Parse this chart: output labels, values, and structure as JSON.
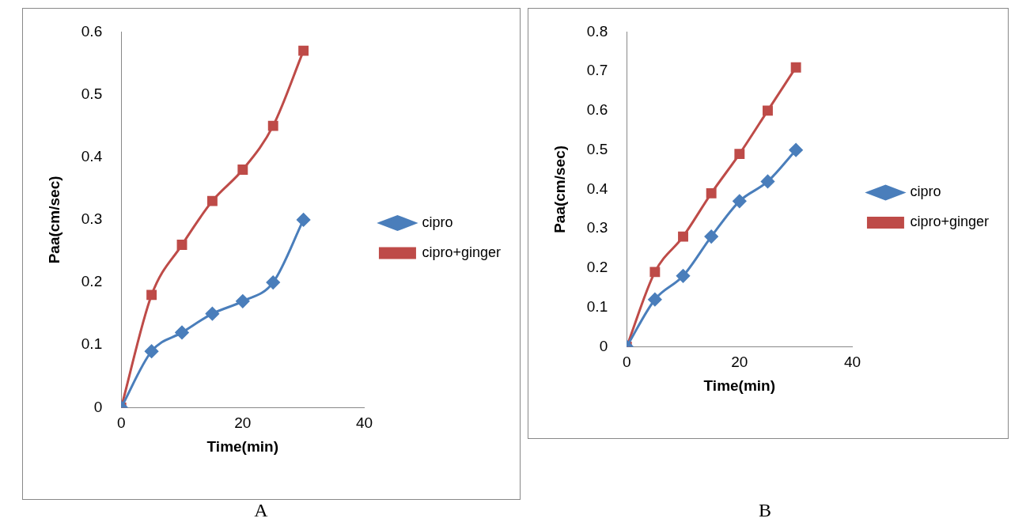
{
  "chart_data": [
    {
      "type": "line",
      "xlabel": "Time(min)",
      "ylabel": "Paa(cm/sec)",
      "x": [
        0,
        5,
        10,
        15,
        20,
        25,
        30
      ],
      "xlim": [
        0,
        40
      ],
      "xticks": [
        0,
        20,
        40
      ],
      "ylim": [
        0,
        0.6
      ],
      "yticks": [
        0,
        0.1,
        0.2,
        0.3,
        0.4,
        0.5,
        0.6
      ],
      "grid": false,
      "legend": "right",
      "annotations": [
        "A"
      ],
      "series": [
        {
          "name": "cipro",
          "color": "#4a7ebb",
          "marker": "diamond",
          "values": [
            0,
            0.09,
            0.12,
            0.15,
            0.17,
            0.2,
            0.3
          ]
        },
        {
          "name": "cipro+ginger",
          "color": "#be4b48",
          "marker": "square",
          "values": [
            0,
            0.18,
            0.26,
            0.33,
            0.38,
            0.45,
            0.57
          ]
        }
      ]
    },
    {
      "type": "line",
      "xlabel": "Time(min)",
      "ylabel": "Paa(cm/sec)",
      "x": [
        0,
        5,
        10,
        15,
        20,
        25,
        30
      ],
      "xlim": [
        0,
        40
      ],
      "xticks": [
        0,
        20,
        40
      ],
      "ylim": [
        0,
        0.8
      ],
      "yticks": [
        0,
        0.1,
        0.2,
        0.3,
        0.4,
        0.5,
        0.6,
        0.7,
        0.8
      ],
      "grid": false,
      "legend": "right",
      "annotations": [
        "B"
      ],
      "series": [
        {
          "name": "cipro",
          "color": "#4a7ebb",
          "marker": "diamond",
          "values": [
            0,
            0.12,
            0.18,
            0.28,
            0.37,
            0.42,
            0.5
          ]
        },
        {
          "name": "cipro+ginger",
          "color": "#be4b48",
          "marker": "square",
          "values": [
            0,
            0.19,
            0.28,
            0.39,
            0.49,
            0.6,
            0.71
          ]
        }
      ]
    }
  ]
}
